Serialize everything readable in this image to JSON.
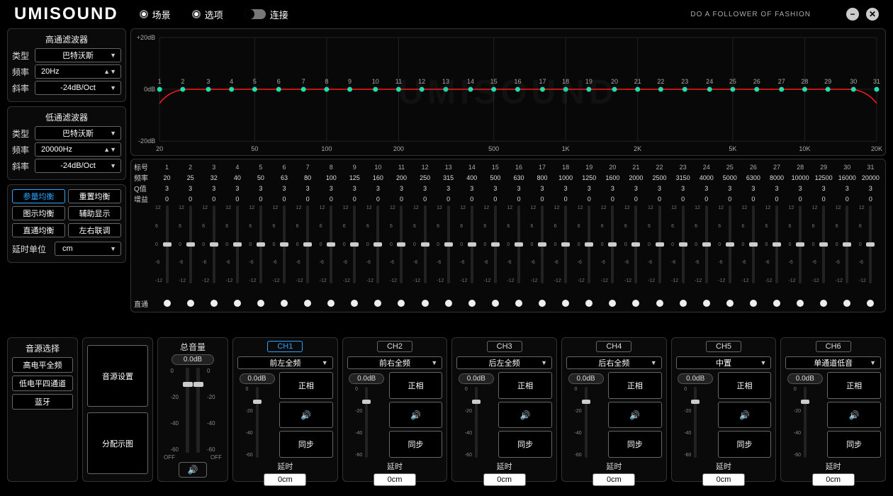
{
  "brand": "UMISOUND",
  "tagline": "DO A FOLLOWER OF FASHION",
  "topmenu": {
    "scene": "场景",
    "options": "选项",
    "connect": "连接"
  },
  "hpf": {
    "title": "高通滤波器",
    "type_label": "类型",
    "type": "巴特沃斯",
    "freq_label": "频率",
    "freq": "20Hz",
    "slope_label": "斜率",
    "slope": "-24dB/Oct"
  },
  "lpf": {
    "title": "低通滤波器",
    "type_label": "类型",
    "type": "巴特沃斯",
    "freq_label": "频率",
    "freq": "20000Hz",
    "slope_label": "斜率",
    "slope": "-24dB/Oct"
  },
  "eqbtns": {
    "param": "参量均衡",
    "reset": "重置均衡",
    "graphic": "图示均衡",
    "aux": "辅助显示",
    "thru": "直通均衡",
    "link": "左右联调"
  },
  "delay_unit": {
    "label": "延时单位",
    "value": "cm"
  },
  "graph": {
    "y_top": "+20dB",
    "y_mid": "0dB",
    "y_bot": "-20dB",
    "x_ticks": [
      "20",
      "50",
      "100",
      "200",
      "500",
      "1K",
      "2K",
      "5K",
      "10K",
      "20K"
    ],
    "points": 31
  },
  "eqtable": {
    "hdr_band": "标号",
    "hdr_freq": "频率",
    "hdr_q": "Q值",
    "hdr_gain": "增益",
    "hdr_pass": "直通",
    "bands": [
      1,
      2,
      3,
      4,
      5,
      6,
      7,
      8,
      9,
      10,
      11,
      12,
      13,
      14,
      15,
      16,
      17,
      18,
      19,
      20,
      21,
      22,
      23,
      24,
      25,
      26,
      27,
      28,
      29,
      30,
      31
    ],
    "freqs": [
      20,
      25,
      32,
      40,
      50,
      63,
      80,
      100,
      125,
      160,
      200,
      250,
      315,
      400,
      500,
      630,
      800,
      1000,
      1250,
      1600,
      2000,
      2500,
      3150,
      4000,
      5000,
      6300,
      8000,
      10000,
      12500,
      16000,
      20000
    ],
    "qs": [
      3,
      3,
      3,
      3,
      3,
      3,
      3,
      3,
      3,
      3,
      3,
      3,
      3,
      3,
      3,
      3,
      3,
      3,
      3,
      3,
      3,
      3,
      3,
      3,
      3,
      3,
      3,
      3,
      3,
      3,
      3
    ],
    "gains": [
      0,
      0,
      0,
      0,
      0,
      0,
      0,
      0,
      0,
      0,
      0,
      0,
      0,
      0,
      0,
      0,
      0,
      0,
      0,
      0,
      0,
      0,
      0,
      0,
      0,
      0,
      0,
      0,
      0,
      0,
      0
    ],
    "slider_ticks": [
      "12",
      "6",
      "0",
      "-6",
      "-12"
    ]
  },
  "source": {
    "title": "音源选择",
    "hi": "高电平全频",
    "lo": "低电平四通道",
    "bt": "蓝牙",
    "set": "音源设置",
    "map": "分配示图"
  },
  "master": {
    "title": "总音量",
    "value": "0.0dB",
    "scale": [
      "0",
      "-20",
      "-40",
      "-60"
    ],
    "off": "OFF"
  },
  "channels": [
    {
      "id": "CH1",
      "route": "前左全频",
      "gain": "0.0dB",
      "phase": "正相",
      "sync": "同步",
      "delay_l": "延时",
      "delay": "0cm",
      "active": true
    },
    {
      "id": "CH2",
      "route": "前右全频",
      "gain": "0.0dB",
      "phase": "正相",
      "sync": "同步",
      "delay_l": "延时",
      "delay": "0cm",
      "active": false
    },
    {
      "id": "CH3",
      "route": "后左全频",
      "gain": "0.0dB",
      "phase": "正相",
      "sync": "同步",
      "delay_l": "延时",
      "delay": "0cm",
      "active": false
    },
    {
      "id": "CH4",
      "route": "后右全频",
      "gain": "0.0dB",
      "phase": "正相",
      "sync": "同步",
      "delay_l": "延时",
      "delay": "0cm",
      "active": false
    },
    {
      "id": "CH5",
      "route": "中置",
      "gain": "0.0dB",
      "phase": "正相",
      "sync": "同步",
      "delay_l": "延时",
      "delay": "0cm",
      "active": false
    },
    {
      "id": "CH6",
      "route": "单通道低音",
      "gain": "0.0dB",
      "phase": "正相",
      "sync": "同步",
      "delay_l": "延时",
      "delay": "0cm",
      "active": false
    }
  ],
  "ch_scale": [
    "0",
    "-20",
    "-40",
    "-60"
  ],
  "style": {
    "bg": "#000",
    "panel": "#0a0a0a",
    "border": "#333",
    "text": "#dddddd",
    "accent": "#2aa4ff",
    "eq_line": "#ff1a1a",
    "eq_dot": "#1fe0b0",
    "grid": "#222222",
    "slider_thumb": "#cccccc"
  }
}
